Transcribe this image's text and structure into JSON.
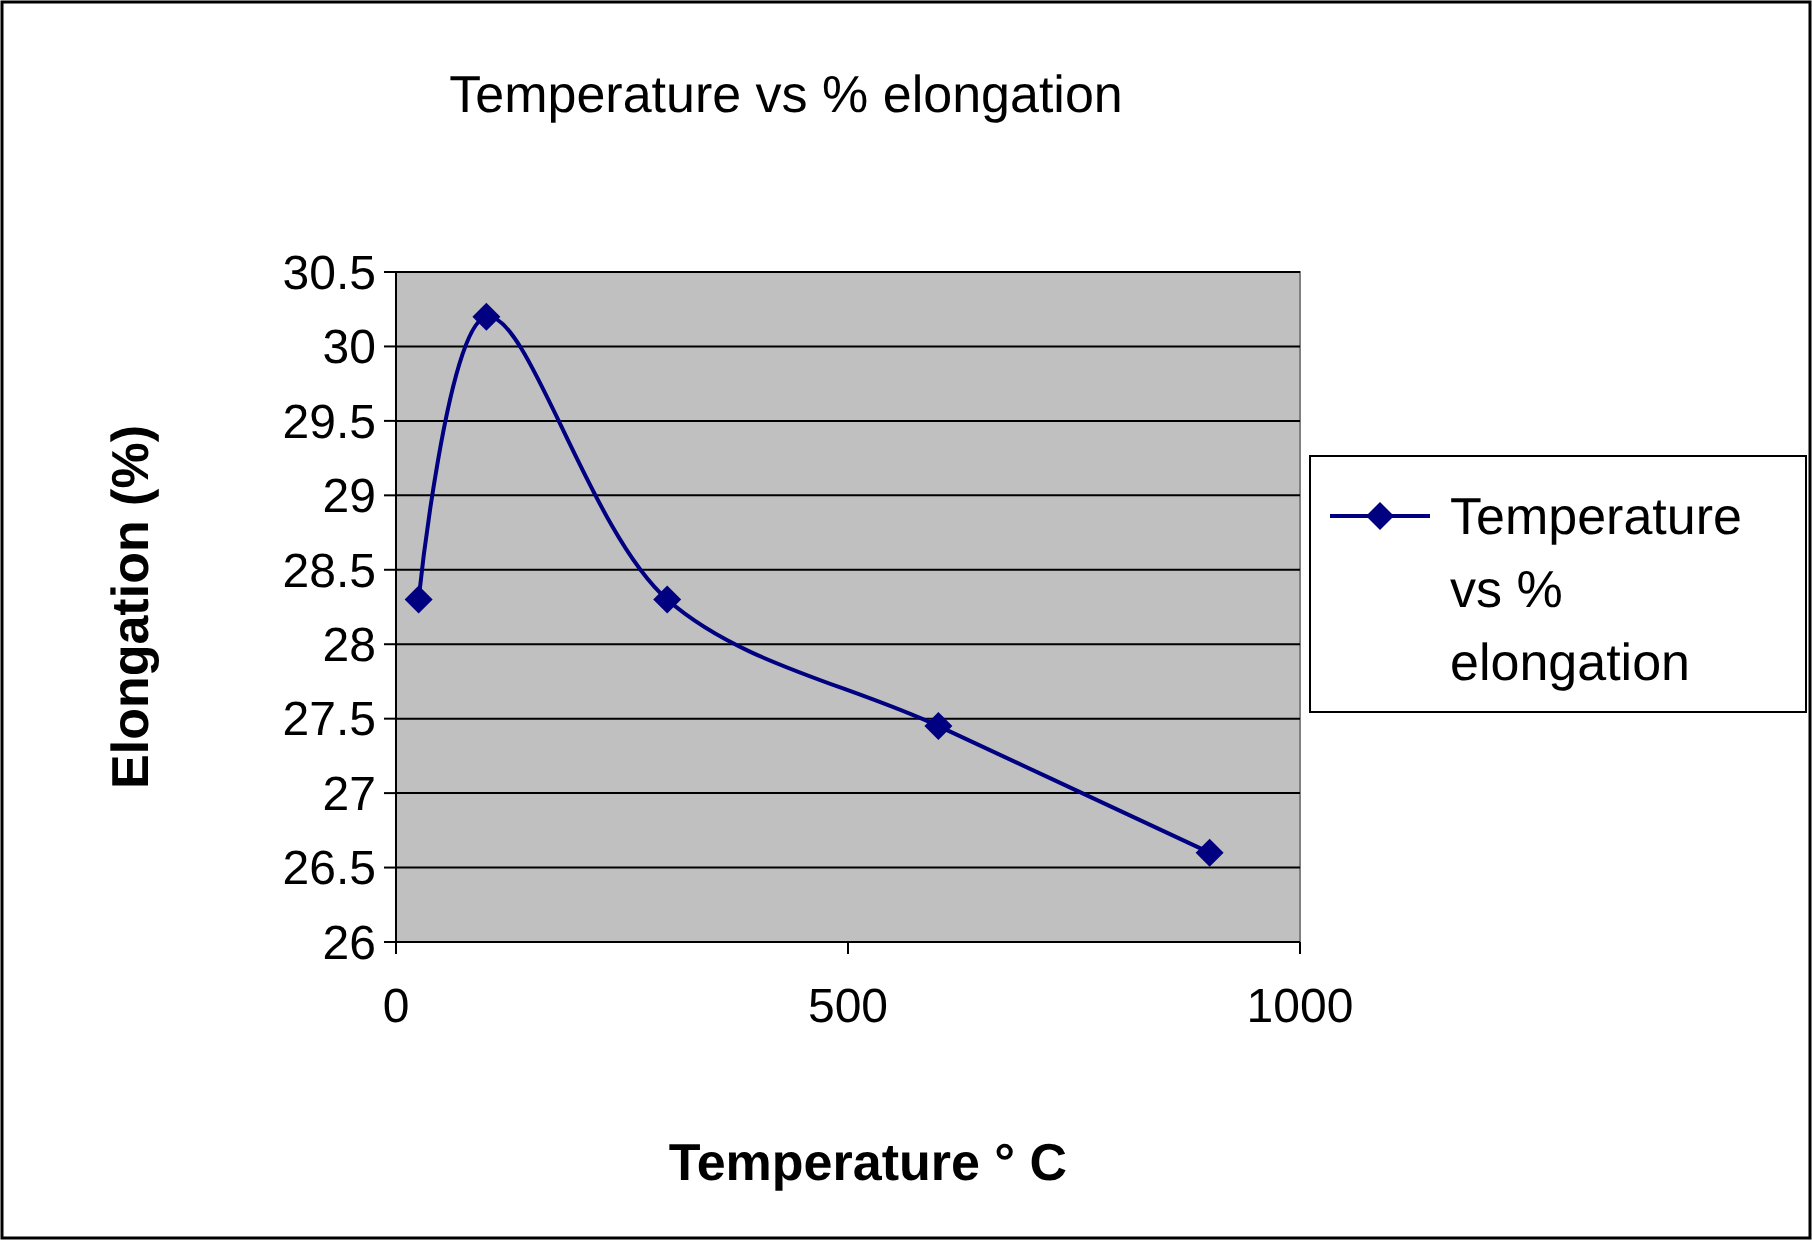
{
  "chart_data": {
    "type": "line",
    "title": "Temperature vs % elongation",
    "xlabel": "Temperature ° C",
    "ylabel": "Elongation (%)",
    "x": [
      25,
      100,
      300,
      600,
      900
    ],
    "series": [
      {
        "name": "Temperature vs % elongation",
        "color": "#000080",
        "values": [
          28.3,
          30.2,
          28.3,
          27.45,
          26.6
        ]
      }
    ],
    "xlim": [
      0,
      1000
    ],
    "xticks": [
      0,
      500,
      1000
    ],
    "ylim": [
      26,
      30.5
    ],
    "yticks": [
      26,
      26.5,
      27,
      27.5,
      28,
      28.5,
      29,
      29.5,
      30,
      30.5
    ],
    "grid": "y",
    "legend": "right",
    "marker": "diamond",
    "line_style": "solid"
  }
}
